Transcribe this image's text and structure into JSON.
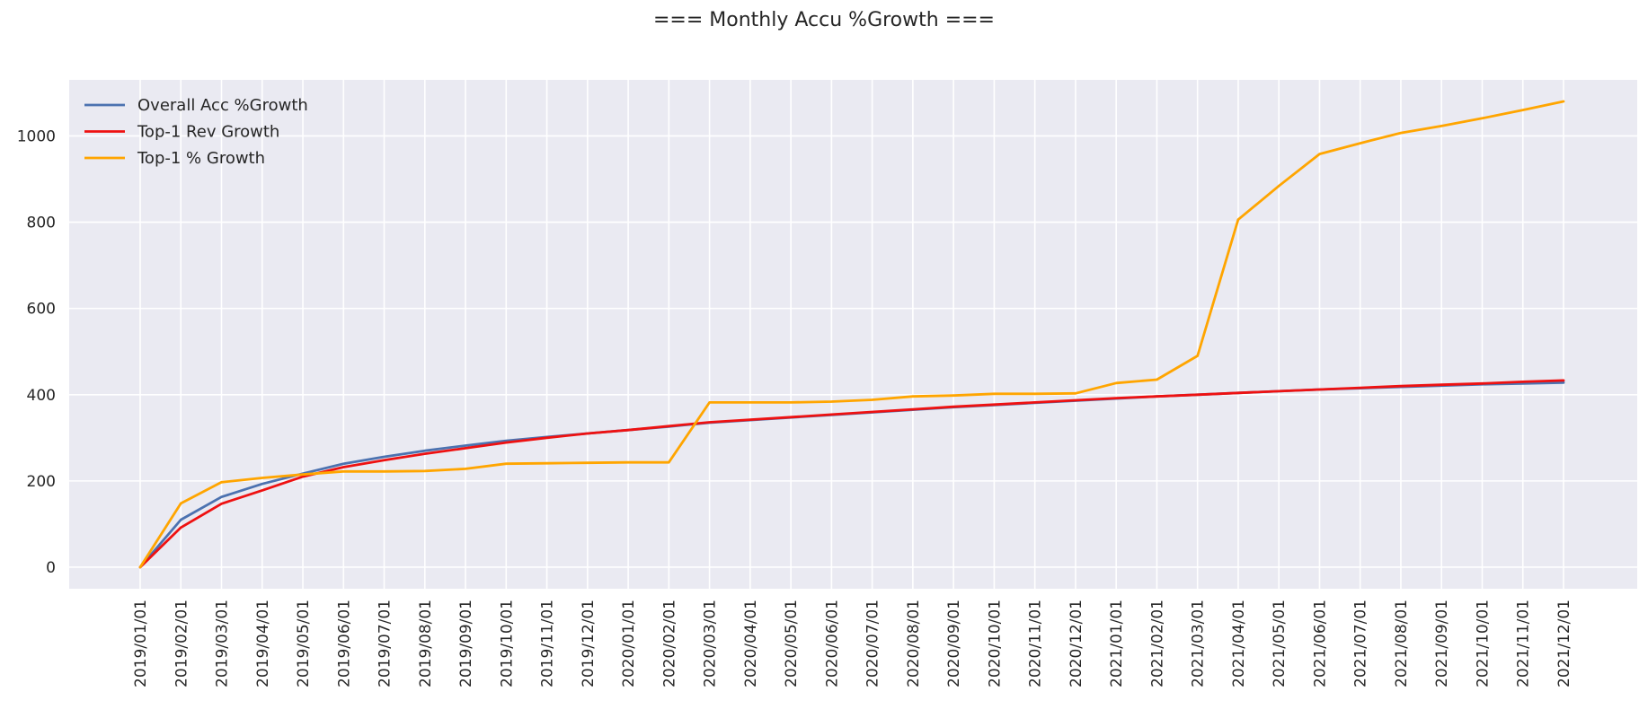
{
  "chart_data": {
    "type": "line",
    "title": "=== Monthly Accu %Growth ===",
    "xlabel": "",
    "ylabel": "",
    "x": [
      "2019/01/01",
      "2019/02/01",
      "2019/03/01",
      "2019/04/01",
      "2019/05/01",
      "2019/06/01",
      "2019/07/01",
      "2019/08/01",
      "2019/09/01",
      "2019/10/01",
      "2019/11/01",
      "2019/12/01",
      "2020/01/01",
      "2020/02/01",
      "2020/03/01",
      "2020/04/01",
      "2020/05/01",
      "2020/06/01",
      "2020/07/01",
      "2020/08/01",
      "2020/09/01",
      "2020/10/01",
      "2020/11/01",
      "2020/12/01",
      "2021/01/01",
      "2021/02/01",
      "2021/03/01",
      "2021/04/01",
      "2021/05/01",
      "2021/06/01",
      "2021/07/01",
      "2021/08/01",
      "2021/09/01",
      "2021/10/01",
      "2021/11/01",
      "2021/12/01"
    ],
    "yticks": [
      0,
      200,
      400,
      600,
      800,
      1000
    ],
    "ylim": [
      -50,
      1130
    ],
    "grid": true,
    "legend_position": "top-left",
    "background": "#eaeaf2",
    "series": [
      {
        "name": "Overall Acc %Growth",
        "color": "#4c72b0",
        "values": [
          0,
          110,
          163,
          193,
          217,
          240,
          256,
          270,
          282,
          293,
          302,
          310,
          318,
          326,
          335,
          341,
          347,
          353,
          359,
          365,
          371,
          376,
          381,
          386,
          391,
          396,
          400,
          404,
          408,
          412,
          415,
          418,
          421,
          424,
          426,
          428
        ]
      },
      {
        "name": "Top-1 Rev Growth",
        "color": "#ee1111",
        "values": [
          0,
          92,
          147,
          178,
          210,
          232,
          248,
          263,
          276,
          289,
          300,
          310,
          318,
          327,
          336,
          342,
          348,
          354,
          360,
          366,
          372,
          377,
          382,
          387,
          392,
          396,
          400,
          404,
          408,
          412,
          416,
          420,
          423,
          426,
          430,
          433
        ]
      },
      {
        "name": "Top-1 % Growth",
        "color": "#ffa500",
        "values": [
          0,
          148,
          197,
          207,
          215,
          222,
          222,
          223,
          228,
          240,
          241,
          242,
          243,
          243,
          382,
          382,
          382,
          384,
          388,
          396,
          398,
          402,
          402,
          403,
          427,
          435,
          490,
          806,
          884,
          958,
          983,
          1007,
          1023,
          1041,
          1060,
          1080
        ]
      }
    ]
  }
}
